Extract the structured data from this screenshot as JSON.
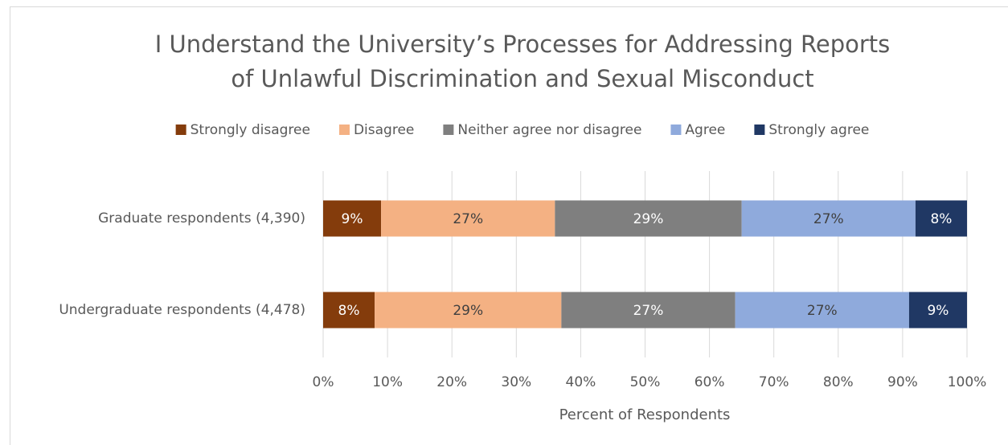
{
  "chart_data": {
    "type": "stacked-bar-horizontal",
    "title": [
      "I Understand the University’s Processes for Addressing Reports",
      "of Unlawful Discrimination and Sexual Misconduct"
    ],
    "x_label": "Percent of Respondents",
    "categories": [
      "Graduate respondents (4,390)",
      "Undergraduate respondents (4,478)"
    ],
    "series": [
      {
        "name": "Strongly disagree",
        "color": "#843c0c",
        "values": [
          9,
          8
        ],
        "value_labels": [
          "9%",
          "8%"
        ]
      },
      {
        "name": "Disagree",
        "color": "#f4b183",
        "values": [
          27,
          29
        ],
        "value_labels": [
          "27%",
          "29%"
        ]
      },
      {
        "name": "Neither agree nor disagree",
        "color": "#7f7f7f",
        "values": [
          29,
          27
        ],
        "value_labels": [
          "29%",
          "27%"
        ]
      },
      {
        "name": "Agree",
        "color": "#8faadc",
        "values": [
          27,
          27
        ],
        "value_labels": [
          "27%",
          "27%"
        ]
      },
      {
        "name": "Strongly agree",
        "color": "#203864",
        "values": [
          8,
          9
        ],
        "value_labels": [
          "8%",
          "9%"
        ]
      }
    ],
    "xlim": [
      0,
      100
    ],
    "xticks": [
      {
        "value": 0,
        "label": "0%"
      },
      {
        "value": 10,
        "label": "10%"
      },
      {
        "value": 20,
        "label": "20%"
      },
      {
        "value": 30,
        "label": "30%"
      },
      {
        "value": 40,
        "label": "40%"
      },
      {
        "value": 50,
        "label": "50%"
      },
      {
        "value": 60,
        "label": "60%"
      },
      {
        "value": 70,
        "label": "70%"
      },
      {
        "value": 80,
        "label": "80%"
      },
      {
        "value": 90,
        "label": "90%"
      },
      {
        "value": 100,
        "label": "100%"
      }
    ],
    "grid": true,
    "legend": "top"
  }
}
